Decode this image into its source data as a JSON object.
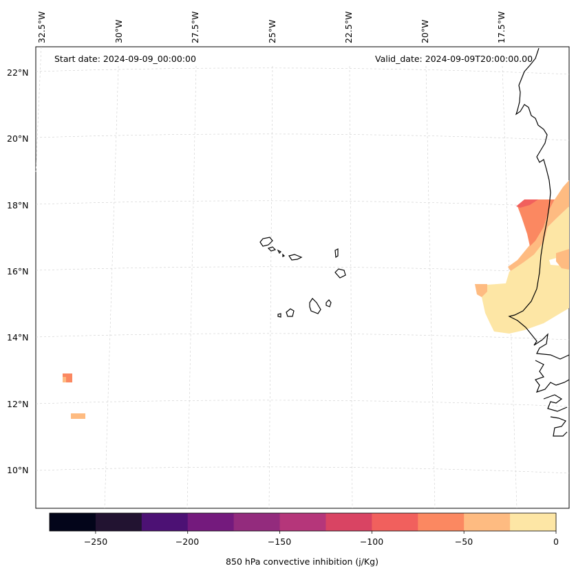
{
  "header": {
    "start_date": "Start date: 2024-09-09_00:00:00",
    "valid_date": "Valid_date: 2024-09-09T20:00:00.00"
  },
  "axes": {
    "lon_labels": [
      "32.5°W",
      "30°W",
      "27.5°W",
      "25°W",
      "22.5°W",
      "20°W",
      "17.5°W"
    ],
    "lat_labels": [
      "22°N",
      "20°N",
      "18°N",
      "16°N",
      "14°N",
      "12°N",
      "10°N"
    ]
  },
  "colorbar": {
    "label": "850 hPa convective inhibition (j/Kg)",
    "tick_labels": [
      "−250",
      "−200",
      "−150",
      "−100",
      "−50",
      "0"
    ],
    "levels": [
      -275,
      -250,
      -225,
      -200,
      -175,
      -150,
      -125,
      -100,
      -75,
      -50,
      -25,
      0
    ],
    "colors": [
      "#03051a",
      "#221331",
      "#4c1174",
      "#741a7d",
      "#932b7d",
      "#b5367a",
      "#d94463",
      "#f1605d",
      "#fb8861",
      "#febb81",
      "#fde6a5"
    ]
  },
  "map": {
    "variable": "850 hPa convective inhibition",
    "units": "j/Kg",
    "region": "Cape Verde and West African coast"
  }
}
